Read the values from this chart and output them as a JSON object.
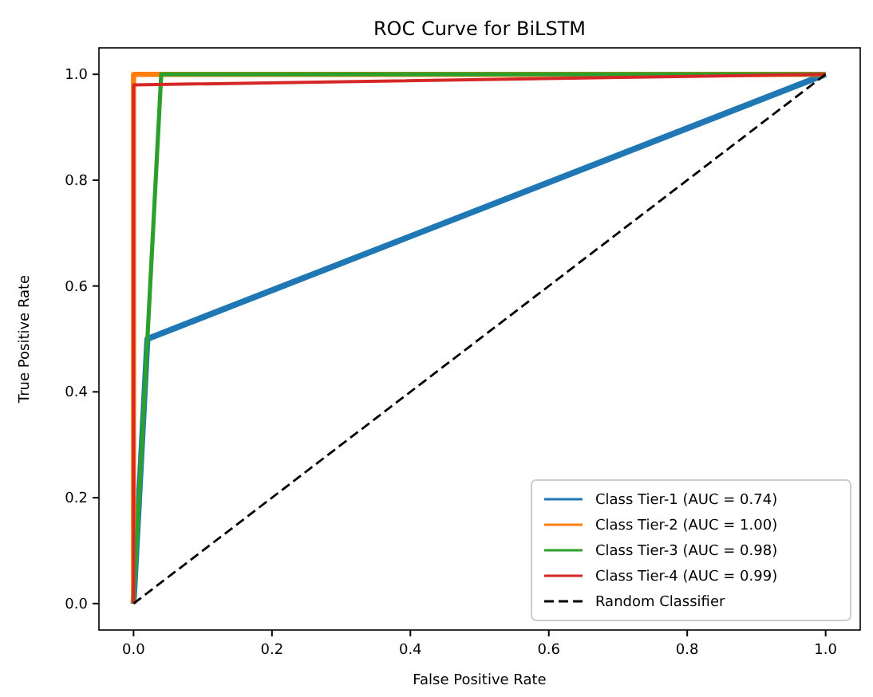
{
  "chart_data": {
    "type": "line",
    "title": "ROC Curve for BiLSTM",
    "xlabel": "False Positive Rate",
    "ylabel": "True Positive Rate",
    "xlim": [
      -0.05,
      1.05
    ],
    "ylim": [
      -0.05,
      1.05
    ],
    "xticks": [
      {
        "value": 0,
        "label": "0.0"
      },
      0.2,
      0.4,
      0.6,
      0.8,
      {
        "value": 1,
        "label": "1.0"
      }
    ],
    "yticks": [
      {
        "value": 0,
        "label": "0.0"
      },
      0.2,
      0.4,
      0.6,
      0.8,
      {
        "value": 1,
        "label": "1.0"
      }
    ],
    "legend": "bottom right",
    "grid": false,
    "series": [
      {
        "name": "Class Tier-1 (AUC = 0.74)",
        "color": "#1f77b4",
        "x": [
          0,
          0.02,
          1
        ],
        "values": [
          0,
          0.5,
          1
        ]
      },
      {
        "name": "Class Tier-2 (AUC = 1.00)",
        "color": "#ff7f0e",
        "x": [
          0,
          0,
          1
        ],
        "values": [
          0,
          1,
          1
        ]
      },
      {
        "name": "Class Tier-3 (AUC = 0.98)",
        "color": "#2ca02c",
        "x": [
          0,
          0.04,
          1
        ],
        "values": [
          0,
          1,
          1
        ]
      },
      {
        "name": "Class Tier-4 (AUC = 0.99)",
        "color": "#d62728",
        "x": [
          0,
          0,
          1
        ],
        "values": [
          0,
          0.98,
          1
        ]
      },
      {
        "name": "Random Classifier",
        "color": "#000000",
        "x": [
          0,
          1
        ],
        "values": [
          0,
          1
        ],
        "line_style": "dashed"
      }
    ]
  }
}
